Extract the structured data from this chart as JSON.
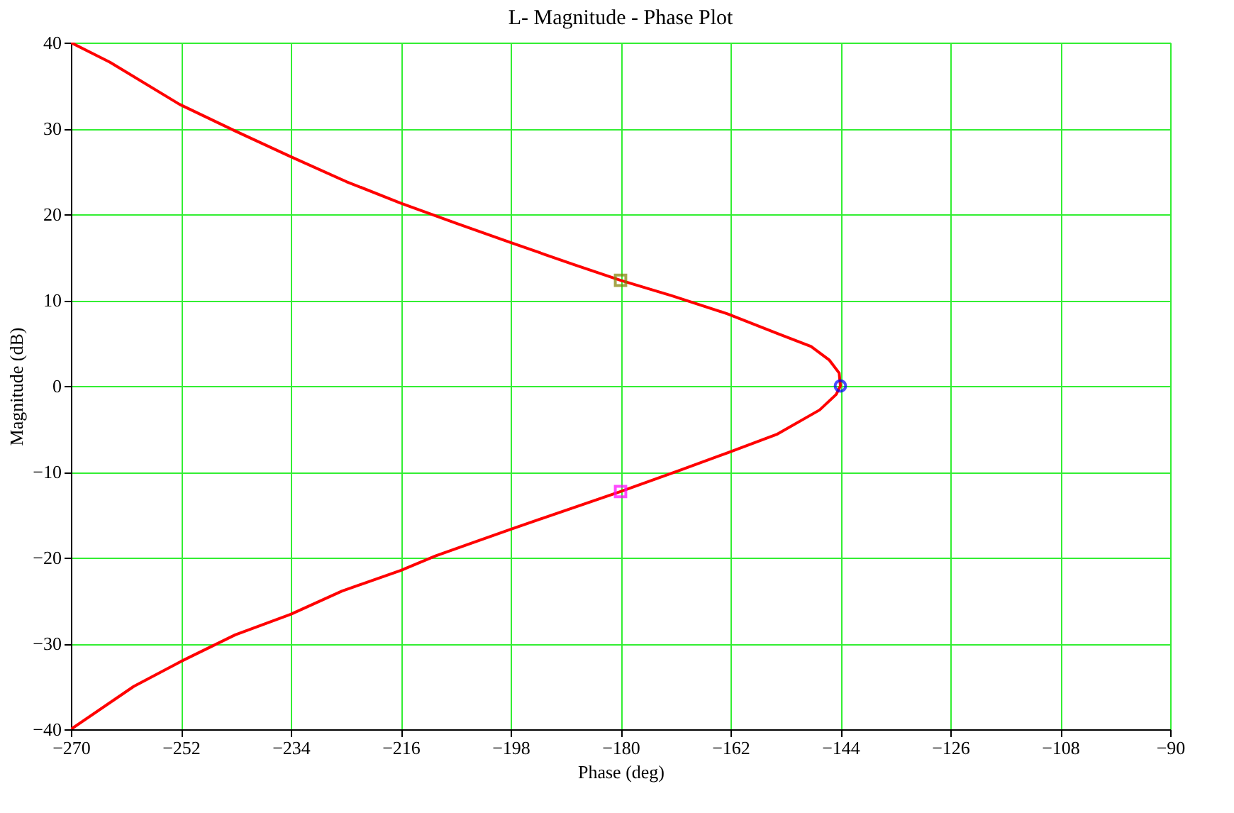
{
  "chart_data": {
    "type": "line",
    "title": "L- Magnitude - Phase Plot",
    "xlabel": "Phase (deg)",
    "ylabel": "Magnitude (dB)",
    "xlim": [
      -270,
      -90
    ],
    "xticks": [
      -270,
      -252,
      -234,
      -216,
      -198,
      -180,
      -162,
      -144,
      -126,
      -108,
      -90
    ],
    "ylim": [
      -40,
      40
    ],
    "yticks": [
      -40,
      -30,
      -20,
      -10,
      0,
      10,
      20,
      30,
      40
    ],
    "grid": true,
    "series": [
      {
        "color": "#ff0000",
        "marker": "none",
        "line_style": "solid",
        "x": [
          -270,
          -263.6,
          -252.2,
          -243.1,
          -234,
          -224.9,
          -216,
          -206.7,
          -198,
          -187.5,
          -180,
          -171.6,
          -162.5,
          -154.3,
          -148.8,
          -145.8,
          -144.2,
          -144,
          -144.7,
          -147.4,
          -154.3,
          -162.5,
          -170.2,
          -180,
          -198,
          -210.3,
          -216,
          -225.6,
          -234,
          -243.1,
          -252,
          -259.7,
          -270
        ],
        "values": [
          40,
          37.7,
          32.8,
          29.7,
          26.7,
          23.8,
          21.3,
          18.9,
          16.7,
          14.1,
          12.3,
          10.5,
          8.4,
          6.1,
          4.6,
          3.0,
          1.5,
          0,
          -1.0,
          -2.8,
          -5.6,
          -7.8,
          -9.8,
          -12.3,
          -16.7,
          -19.8,
          -21.5,
          -23.9,
          -26.6,
          -29.0,
          -32.1,
          -35,
          -40
        ]
      },
      {
        "type": "scatter",
        "color": "#808000",
        "marker": "square",
        "x": [
          -180
        ],
        "values": [
          12.3
        ]
      },
      {
        "type": "scatter",
        "color": "#ff00ff",
        "marker": "square",
        "x": [
          -180
        ],
        "values": [
          -12.3
        ]
      },
      {
        "type": "scatter",
        "color": "#0000ff",
        "marker": "circle",
        "x": [
          -144
        ],
        "values": [
          0
        ]
      }
    ]
  }
}
